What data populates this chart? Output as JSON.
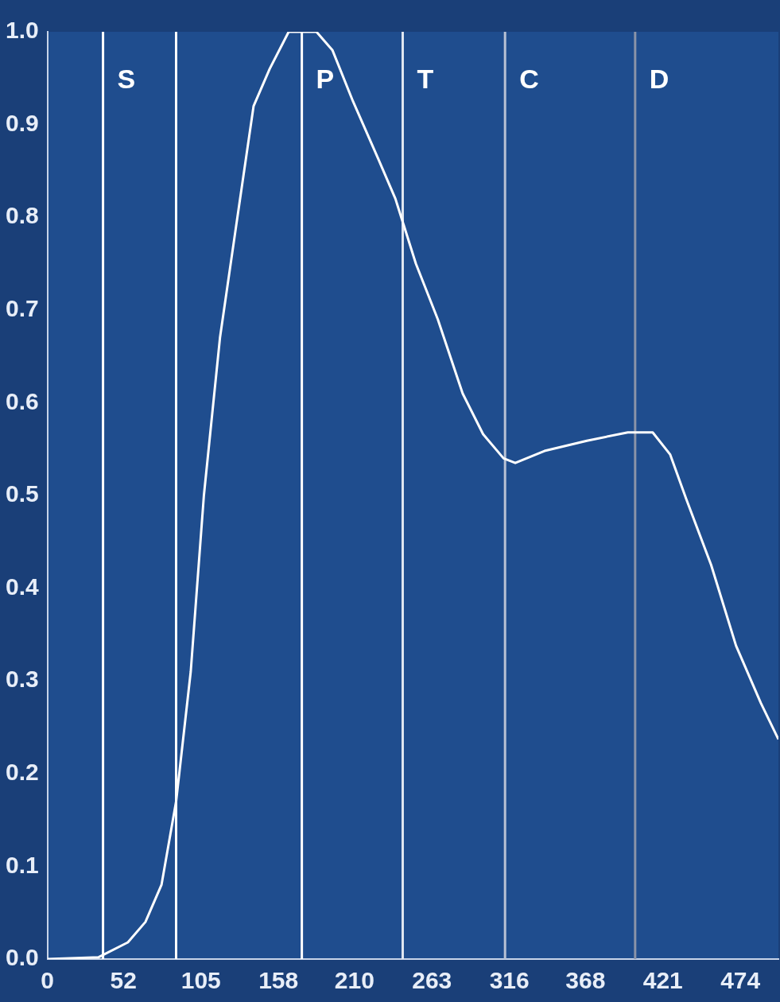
{
  "chart_data": {
    "type": "line",
    "x": [
      0,
      35,
      55,
      67,
      78,
      88,
      98,
      107,
      118,
      129,
      141,
      152,
      165,
      184,
      195,
      209,
      226,
      238,
      252,
      267,
      284,
      298,
      312,
      320,
      340,
      369,
      397,
      414,
      426,
      437,
      454,
      471,
      488,
      500
    ],
    "series": [
      {
        "color": "#ffffff",
        "values": [
          0,
          0.002,
          0.018,
          0.04,
          0.08,
          0.17,
          0.31,
          0.5,
          0.67,
          0.79,
          0.92,
          0.96,
          1.0,
          1.0,
          0.98,
          0.925,
          0.864,
          0.82,
          0.75,
          0.69,
          0.61,
          0.566,
          0.54,
          0.535,
          0.548,
          0.559,
          0.568,
          0.568,
          0.544,
          0.496,
          0.425,
          0.338,
          0.276,
          0.237
        ]
      }
    ],
    "xlim": [
      0,
      500
    ],
    "xticks": [
      0,
      52,
      105,
      158,
      210,
      263,
      316,
      368,
      421,
      474
    ],
    "ylim": [
      0,
      1
    ],
    "yticks": [
      {
        "value": 0,
        "label": "0.0"
      },
      {
        "value": 0.1,
        "label": "0.1"
      },
      {
        "value": 0.2,
        "label": "0.2"
      },
      {
        "value": 0.3,
        "label": "0.3"
      },
      {
        "value": 0.4,
        "label": "0.4"
      },
      {
        "value": 0.5,
        "label": "0.5"
      },
      {
        "value": 0.6,
        "label": "0.6"
      },
      {
        "value": 0.7,
        "label": "0.7"
      },
      {
        "value": 0.8,
        "label": "0.8"
      },
      {
        "value": 0.9,
        "label": "0.9"
      },
      {
        "value": 1,
        "label": "1.0"
      }
    ],
    "ref_lines": [
      {
        "axis": "x",
        "value": 38,
        "label": "S",
        "color": "#ffffff"
      },
      {
        "axis": "x",
        "value": 88,
        "color": "#ffffff"
      },
      {
        "axis": "x",
        "value": 174,
        "label": "P",
        "color": "#ffffff"
      },
      {
        "axis": "x",
        "value": 243,
        "label": "T",
        "color": "#e0e6f0"
      },
      {
        "axis": "x",
        "value": 313,
        "label": "C",
        "color": "#b8c2d4"
      },
      {
        "axis": "x",
        "value": 402,
        "label": "D",
        "color": "#8a93a8"
      }
    ],
    "marker": "none",
    "line_style": "solid",
    "grid": false,
    "legend": false
  }
}
